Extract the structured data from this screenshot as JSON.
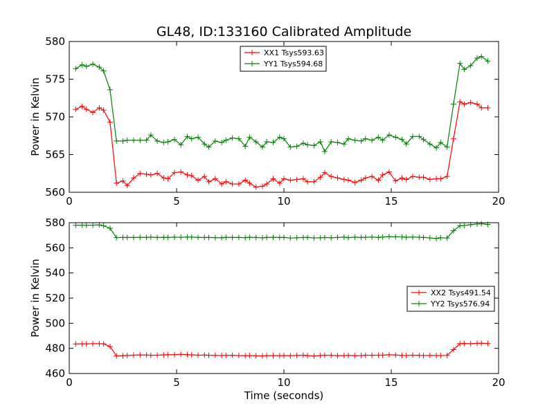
{
  "title": "GL48, ID:133160 Calibrated Amplitude",
  "chart_data": [
    {
      "type": "line",
      "title": "GL48, ID:133160 Calibrated Amplitude",
      "xlabel": "",
      "ylabel": "Power in Kelvin",
      "xlim": [
        0,
        20
      ],
      "ylim": [
        560,
        580
      ],
      "xticks": [
        "0",
        "5",
        "10",
        "15",
        "20"
      ],
      "yticks": [
        "560",
        "565",
        "570",
        "575",
        "580"
      ],
      "legend": "top-center",
      "grid": false,
      "series": [
        {
          "name": "XX1 Tsys593.63",
          "color": "#ff0000",
          "x": [
            0.3,
            0.6,
            0.8,
            1.1,
            1.4,
            1.6,
            1.9,
            2.2,
            2.5,
            2.7,
            3.0,
            3.3,
            3.6,
            3.8,
            4.1,
            4.4,
            4.6,
            4.9,
            5.2,
            5.5,
            5.7,
            6.0,
            6.3,
            6.5,
            6.8,
            7.1,
            7.3,
            7.6,
            7.9,
            8.2,
            8.4,
            8.7,
            9.0,
            9.2,
            9.5,
            9.8,
            10.0,
            10.3,
            10.6,
            10.9,
            11.1,
            11.4,
            11.7,
            11.9,
            12.2,
            12.5,
            12.8,
            13.0,
            13.3,
            13.6,
            13.8,
            14.1,
            14.4,
            14.6,
            14.9,
            15.2,
            15.5,
            15.7,
            16.0,
            16.3,
            16.5,
            16.8,
            17.1,
            17.3,
            17.6,
            17.9,
            18.2,
            18.4,
            18.7,
            19.0,
            19.2,
            19.5
          ],
          "y": [
            571.0,
            571.4,
            571.0,
            570.6,
            571.2,
            570.9,
            569.3,
            561.2,
            561.5,
            560.9,
            561.9,
            562.5,
            562.4,
            562.3,
            562.5,
            561.9,
            561.8,
            562.6,
            562.7,
            562.3,
            562.2,
            561.6,
            562.1,
            561.4,
            561.8,
            561.1,
            561.4,
            561.1,
            561.1,
            561.6,
            561.2,
            560.7,
            560.8,
            561.1,
            561.8,
            561.2,
            561.8,
            561.6,
            561.7,
            561.8,
            561.4,
            561.4,
            562.0,
            562.6,
            562.1,
            561.9,
            561.7,
            561.6,
            561.3,
            561.6,
            561.9,
            562.1,
            561.6,
            562.3,
            562.7,
            561.5,
            561.9,
            561.7,
            562.1,
            562.0,
            562.0,
            561.7,
            561.8,
            561.8,
            562.1,
            567.1,
            572.0,
            571.7,
            571.9,
            571.7,
            571.2,
            571.2
          ]
        },
        {
          "name": "YY1 Tsys594.68",
          "color": "#008000",
          "x": [
            0.3,
            0.6,
            0.8,
            1.1,
            1.4,
            1.6,
            1.9,
            2.2,
            2.5,
            2.7,
            3.0,
            3.3,
            3.6,
            3.8,
            4.1,
            4.4,
            4.6,
            4.9,
            5.2,
            5.5,
            5.7,
            6.0,
            6.3,
            6.5,
            6.8,
            7.1,
            7.3,
            7.6,
            7.9,
            8.2,
            8.4,
            8.7,
            9.0,
            9.2,
            9.5,
            9.8,
            10.0,
            10.3,
            10.6,
            10.9,
            11.1,
            11.4,
            11.7,
            11.9,
            12.2,
            12.5,
            12.8,
            13.0,
            13.3,
            13.6,
            13.8,
            14.1,
            14.4,
            14.6,
            14.9,
            15.2,
            15.5,
            15.7,
            16.0,
            16.3,
            16.5,
            16.8,
            17.1,
            17.3,
            17.6,
            17.9,
            18.2,
            18.4,
            18.7,
            19.0,
            19.2,
            19.5
          ],
          "y": [
            576.4,
            576.9,
            576.7,
            577.0,
            576.6,
            576.1,
            573.6,
            566.8,
            566.8,
            566.9,
            566.9,
            566.9,
            566.9,
            567.6,
            566.8,
            566.6,
            566.7,
            567.0,
            566.3,
            567.4,
            567.1,
            567.3,
            566.4,
            566.0,
            566.8,
            566.6,
            566.9,
            567.2,
            567.1,
            566.1,
            567.3,
            566.7,
            566.0,
            566.7,
            566.6,
            567.3,
            567.1,
            566.0,
            566.1,
            566.5,
            566.3,
            566.2,
            566.7,
            565.4,
            566.7,
            566.6,
            566.4,
            567.1,
            566.9,
            566.8,
            567.1,
            566.9,
            567.3,
            566.9,
            567.6,
            567.3,
            567.0,
            566.4,
            567.4,
            567.4,
            567.0,
            566.4,
            565.9,
            566.6,
            566.0,
            571.7,
            577.1,
            576.3,
            576.8,
            577.8,
            578.0,
            577.4
          ]
        }
      ]
    },
    {
      "type": "line",
      "title": "",
      "xlabel": "Time (seconds)",
      "ylabel": "Power in Kelvin",
      "xlim": [
        0,
        20
      ],
      "ylim": [
        460,
        580
      ],
      "xticks": [
        "0",
        "5",
        "10",
        "15",
        "20"
      ],
      "yticks": [
        "460",
        "480",
        "500",
        "520",
        "540",
        "560",
        "580"
      ],
      "legend": "center-right",
      "grid": false,
      "series": [
        {
          "name": "XX2 Tsys491.54",
          "color": "#ff0000",
          "x": [
            0.3,
            0.6,
            0.8,
            1.1,
            1.4,
            1.6,
            1.9,
            2.2,
            2.5,
            2.7,
            3.0,
            3.3,
            3.6,
            3.8,
            4.1,
            4.4,
            4.6,
            4.9,
            5.2,
            5.5,
            5.7,
            6.0,
            6.3,
            6.5,
            6.8,
            7.1,
            7.3,
            7.6,
            7.9,
            8.2,
            8.4,
            8.7,
            9.0,
            9.2,
            9.5,
            9.8,
            10.0,
            10.3,
            10.6,
            10.9,
            11.1,
            11.4,
            11.7,
            11.9,
            12.2,
            12.5,
            12.8,
            13.0,
            13.3,
            13.6,
            13.8,
            14.1,
            14.4,
            14.6,
            14.9,
            15.2,
            15.5,
            15.7,
            16.0,
            16.3,
            16.5,
            16.8,
            17.1,
            17.3,
            17.6,
            17.9,
            18.2,
            18.4,
            18.7,
            19.0,
            19.2,
            19.5
          ],
          "y": [
            483.5,
            483.6,
            483.6,
            483.7,
            483.7,
            483.6,
            481.5,
            474.0,
            474.2,
            474.4,
            474.6,
            474.8,
            474.7,
            474.5,
            474.6,
            474.8,
            474.9,
            474.9,
            475.3,
            475.0,
            474.8,
            474.6,
            474.7,
            474.5,
            474.5,
            474.3,
            474.4,
            474.5,
            474.3,
            474.2,
            474.3,
            474.1,
            474.0,
            474.2,
            474.3,
            474.2,
            474.3,
            474.2,
            474.4,
            474.6,
            474.2,
            474.0,
            474.3,
            474.5,
            474.5,
            474.2,
            474.3,
            474.4,
            474.2,
            474.3,
            474.5,
            474.5,
            474.6,
            474.6,
            474.9,
            474.7,
            474.4,
            474.3,
            474.6,
            474.4,
            474.3,
            474.4,
            474.3,
            474.3,
            474.4,
            479.0,
            483.8,
            483.9,
            483.7,
            484.0,
            484.1,
            483.9
          ]
        },
        {
          "name": "YY2 Tsys576.94",
          "color": "#008000",
          "x": [
            0.3,
            0.6,
            0.8,
            1.1,
            1.4,
            1.6,
            1.9,
            2.2,
            2.5,
            2.7,
            3.0,
            3.3,
            3.6,
            3.8,
            4.1,
            4.4,
            4.6,
            4.9,
            5.2,
            5.5,
            5.7,
            6.0,
            6.3,
            6.5,
            6.8,
            7.1,
            7.3,
            7.6,
            7.9,
            8.2,
            8.4,
            8.7,
            9.0,
            9.2,
            9.5,
            9.8,
            10.0,
            10.3,
            10.6,
            10.9,
            11.1,
            11.4,
            11.7,
            11.9,
            12.2,
            12.5,
            12.8,
            13.0,
            13.3,
            13.6,
            13.8,
            14.1,
            14.4,
            14.6,
            14.9,
            15.2,
            15.5,
            15.7,
            16.0,
            16.3,
            16.5,
            16.8,
            17.1,
            17.3,
            17.6,
            17.9,
            18.2,
            18.4,
            18.7,
            19.0,
            19.2,
            19.5
          ],
          "y": [
            578.0,
            578.1,
            578.0,
            578.1,
            578.3,
            577.6,
            575.6,
            568.1,
            568.3,
            568.3,
            568.2,
            568.4,
            568.3,
            568.5,
            568.2,
            568.4,
            568.3,
            568.5,
            568.4,
            568.6,
            568.5,
            568.3,
            568.2,
            568.3,
            568.1,
            568.0,
            568.4,
            568.2,
            568.3,
            568.1,
            568.4,
            568.2,
            568.0,
            568.3,
            568.4,
            568.2,
            568.3,
            567.8,
            568.0,
            568.2,
            568.3,
            567.9,
            568.0,
            568.2,
            568.0,
            568.3,
            568.5,
            568.1,
            568.5,
            568.3,
            568.4,
            568.6,
            568.2,
            568.6,
            568.9,
            568.8,
            568.7,
            568.4,
            568.6,
            568.4,
            568.3,
            567.9,
            567.4,
            568.0,
            567.8,
            573.6,
            577.6,
            577.8,
            578.4,
            579.0,
            579.2,
            578.6
          ]
        }
      ]
    }
  ]
}
